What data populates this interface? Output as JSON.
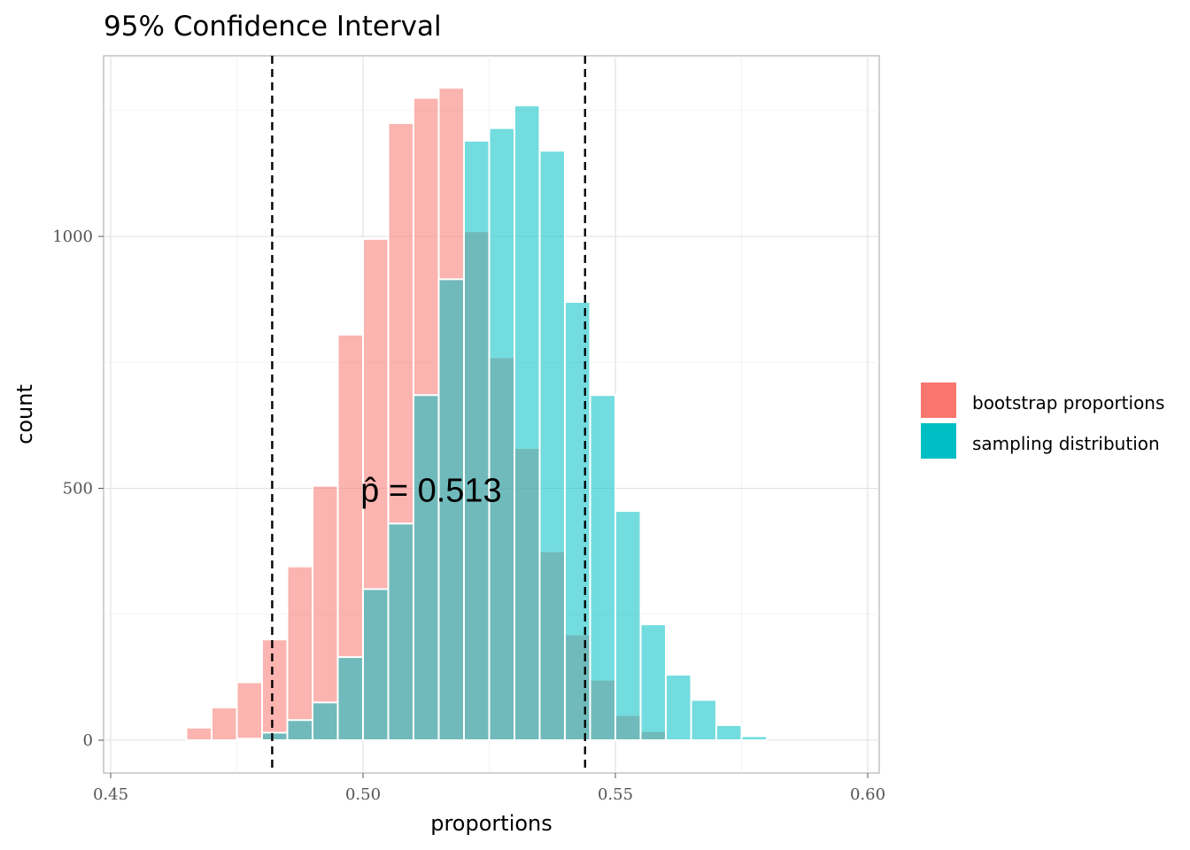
{
  "chart_data": {
    "type": "bar",
    "title": "95% Confidence Interval",
    "xlabel": "proportions",
    "ylabel": "count",
    "xlim": [
      0.45,
      0.6
    ],
    "ylim": [
      0,
      1340
    ],
    "x_ticks": [
      {
        "value": 0.45,
        "label": "0.45"
      },
      {
        "value": 0.5,
        "label": "0.50"
      },
      {
        "value": 0.55,
        "label": "0.55"
      },
      {
        "value": 0.6,
        "label": "0.60"
      }
    ],
    "y_ticks": [
      {
        "value": 0,
        "label": "0"
      },
      {
        "value": 500,
        "label": "500"
      },
      {
        "value": 1000,
        "label": "1000"
      }
    ],
    "grid": true,
    "legend_position": "right",
    "bin_width": 0.005,
    "series": [
      {
        "name": "bootstrap proportions",
        "color": "#F8766D",
        "fill_opacity": 0.55,
        "bins": [
          {
            "x": 0.4675,
            "count": 25
          },
          {
            "x": 0.4725,
            "count": 65
          },
          {
            "x": 0.4775,
            "count": 115
          },
          {
            "x": 0.4825,
            "count": 200
          },
          {
            "x": 0.4875,
            "count": 345
          },
          {
            "x": 0.4925,
            "count": 505
          },
          {
            "x": 0.4975,
            "count": 805
          },
          {
            "x": 0.5025,
            "count": 995
          },
          {
            "x": 0.5075,
            "count": 1225
          },
          {
            "x": 0.5125,
            "count": 1275
          },
          {
            "x": 0.5175,
            "count": 1295
          },
          {
            "x": 0.5225,
            "count": 1010
          },
          {
            "x": 0.5275,
            "count": 760
          },
          {
            "x": 0.5325,
            "count": 580
          },
          {
            "x": 0.5375,
            "count": 375
          },
          {
            "x": 0.5425,
            "count": 210
          },
          {
            "x": 0.5475,
            "count": 120
          },
          {
            "x": 0.5525,
            "count": 50
          },
          {
            "x": 0.5575,
            "count": 18
          }
        ]
      },
      {
        "name": "sampling distribution",
        "color": "#00BFC4",
        "fill_opacity": 0.55,
        "bins": [
          {
            "x": 0.4775,
            "count": 3
          },
          {
            "x": 0.4825,
            "count": 15
          },
          {
            "x": 0.4875,
            "count": 40
          },
          {
            "x": 0.4925,
            "count": 75
          },
          {
            "x": 0.4975,
            "count": 165
          },
          {
            "x": 0.5025,
            "count": 300
          },
          {
            "x": 0.5075,
            "count": 430
          },
          {
            "x": 0.5125,
            "count": 685
          },
          {
            "x": 0.5175,
            "count": 915
          },
          {
            "x": 0.5225,
            "count": 1190
          },
          {
            "x": 0.5275,
            "count": 1215
          },
          {
            "x": 0.5325,
            "count": 1260
          },
          {
            "x": 0.5375,
            "count": 1170
          },
          {
            "x": 0.5425,
            "count": 870
          },
          {
            "x": 0.5475,
            "count": 685
          },
          {
            "x": 0.5525,
            "count": 455
          },
          {
            "x": 0.5575,
            "count": 230
          },
          {
            "x": 0.5625,
            "count": 130
          },
          {
            "x": 0.5675,
            "count": 80
          },
          {
            "x": 0.5725,
            "count": 30
          },
          {
            "x": 0.5775,
            "count": 8
          }
        ]
      }
    ],
    "reference_lines": [
      {
        "x": 0.482,
        "style": "dashed",
        "color": "#000000"
      },
      {
        "x": 0.544,
        "style": "dashed",
        "color": "#000000"
      }
    ],
    "annotation": {
      "text": "p̂ = 0.513",
      "x": 0.4995,
      "y": 470
    }
  }
}
